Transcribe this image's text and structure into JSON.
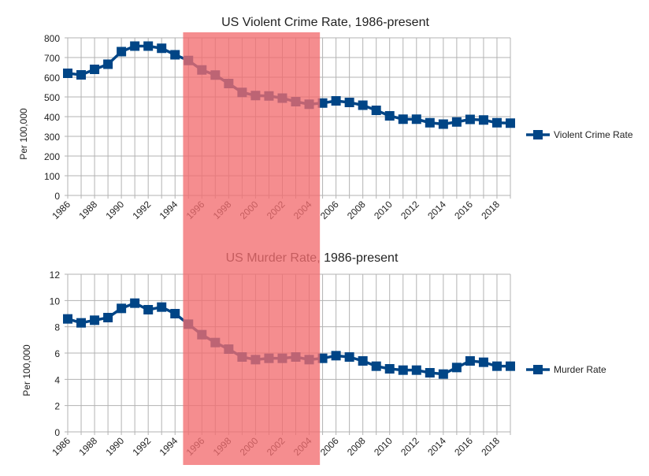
{
  "chart_data": [
    {
      "type": "line",
      "title": "US Violent Crime Rate, 1986-present",
      "ylabel": "Per 100,000",
      "xlabel": "",
      "ylim": [
        0,
        800
      ],
      "yticks": [
        0,
        100,
        200,
        300,
        400,
        500,
        600,
        700,
        800
      ],
      "grid": true,
      "legend": "right",
      "x": [
        1986,
        1987,
        1988,
        1989,
        1990,
        1991,
        1992,
        1993,
        1994,
        1995,
        1996,
        1997,
        1998,
        1999,
        2000,
        2001,
        2002,
        2003,
        2004,
        2005,
        2006,
        2007,
        2008,
        2009,
        2010,
        2011,
        2012,
        2013,
        2014,
        2015,
        2016,
        2017,
        2018,
        2019
      ],
      "xtick_labels": [
        "1986",
        "1988",
        "1990",
        "1992",
        "1994",
        "1996",
        "1998",
        "2000",
        "2002",
        "2004",
        "2006",
        "2008",
        "2010",
        "2012",
        "2014",
        "2016",
        "2018"
      ],
      "series": [
        {
          "name": "Violent Crime Rate",
          "color": "#004586",
          "values": [
            620,
            612,
            640,
            666,
            730,
            758,
            758,
            747,
            714,
            685,
            637,
            611,
            568,
            523,
            507,
            505,
            494,
            476,
            463,
            469,
            480,
            472,
            458,
            432,
            404,
            387,
            387,
            369,
            362,
            373,
            386,
            383,
            369,
            367
          ]
        }
      ],
      "highlight": {
        "from": 1994.6,
        "to": 2004.8,
        "color": "#f26d70"
      }
    },
    {
      "type": "line",
      "title": "US Murder Rate, 1986-present",
      "ylabel": "Per 100,000",
      "xlabel": "",
      "ylim": [
        0,
        12
      ],
      "yticks": [
        0,
        2,
        4,
        6,
        8,
        10,
        12
      ],
      "grid": true,
      "legend": "right",
      "x": [
        1986,
        1987,
        1988,
        1989,
        1990,
        1991,
        1992,
        1993,
        1994,
        1995,
        1996,
        1997,
        1998,
        1999,
        2000,
        2001,
        2002,
        2003,
        2004,
        2005,
        2006,
        2007,
        2008,
        2009,
        2010,
        2011,
        2012,
        2013,
        2014,
        2015,
        2016,
        2017,
        2018,
        2019
      ],
      "xtick_labels": [
        "1986",
        "1988",
        "1990",
        "1992",
        "1994",
        "1996",
        "1998",
        "2000",
        "2002",
        "2004",
        "2006",
        "2008",
        "2010",
        "2012",
        "2014",
        "2016",
        "2018"
      ],
      "series": [
        {
          "name": "Murder Rate",
          "color": "#004586",
          "values": [
            8.6,
            8.3,
            8.5,
            8.7,
            9.4,
            9.8,
            9.3,
            9.5,
            9.0,
            8.2,
            7.4,
            6.8,
            6.3,
            5.7,
            5.5,
            5.6,
            5.6,
            5.7,
            5.5,
            5.6,
            5.8,
            5.7,
            5.4,
            5.0,
            4.8,
            4.7,
            4.7,
            4.5,
            4.4,
            4.9,
            5.4,
            5.3,
            5.0,
            5.0
          ]
        }
      ],
      "highlight": {
        "from": 1994.6,
        "to": 2004.8,
        "color": "#f26d70"
      }
    }
  ]
}
